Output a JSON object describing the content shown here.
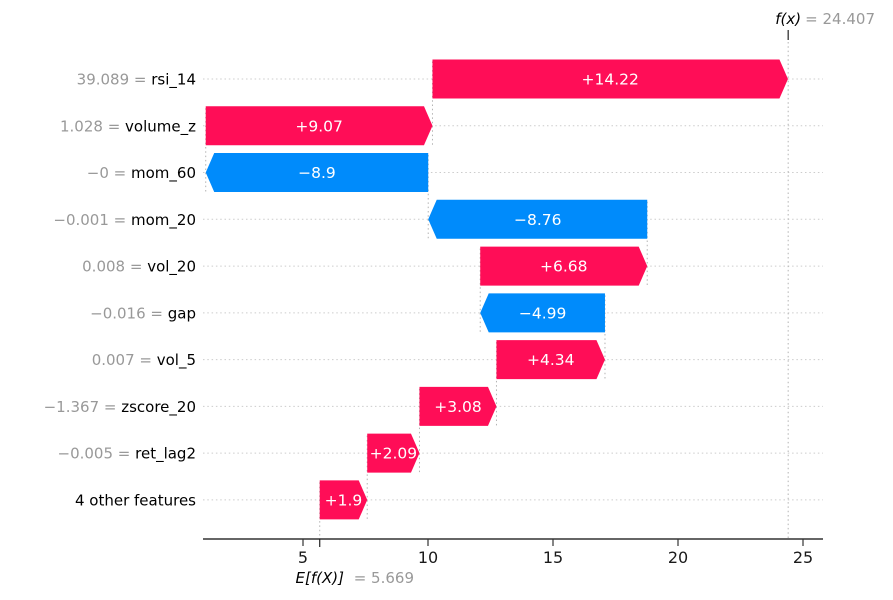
{
  "figure": {
    "background": "#ffffff"
  },
  "annotations": {
    "fx_math": "f(x)",
    "fx_rest": "= 24.407",
    "ef_math": "E[f(X)]",
    "ef_rest": "= 5.669"
  },
  "chart_data": {
    "type": "bar",
    "variant": "shap-waterfall",
    "title": "",
    "xlabel": "",
    "ylabel": "",
    "base_value": 5.669,
    "final_value": 24.407,
    "x_ticks": [
      5,
      10,
      15,
      20,
      25
    ],
    "x_domain": [
      1.0,
      25.8
    ],
    "grid": "dotted-horizontal-per-row",
    "legend": "none",
    "colors": {
      "positive": "#ff0d57",
      "negative": "#008bfb",
      "bar_label": "#ffffff",
      "gray_text": "#999999",
      "black_text": "#000000",
      "grid_line": "#cccccc",
      "connector_line": "#b3b3b3",
      "axis_line": "#333333",
      "tick_label": "#1a1a1a"
    },
    "rows": [
      {
        "feature": "rsi_14",
        "data_value": "39.089",
        "contribution": 14.22,
        "label": "+14.22"
      },
      {
        "feature": "volume_z",
        "data_value": "1.028",
        "contribution": 9.07,
        "label": "+9.07"
      },
      {
        "feature": "mom_60",
        "data_value": "−0",
        "contribution": -8.9,
        "label": "−8.9"
      },
      {
        "feature": "mom_20",
        "data_value": "−0.001",
        "contribution": -8.76,
        "label": "−8.76"
      },
      {
        "feature": "vol_20",
        "data_value": "0.008",
        "contribution": 6.68,
        "label": "+6.68"
      },
      {
        "feature": "gap",
        "data_value": "−0.016",
        "contribution": -4.99,
        "label": "−4.99"
      },
      {
        "feature": "vol_5",
        "data_value": "0.007",
        "contribution": 4.34,
        "label": "+4.34"
      },
      {
        "feature": "zscore_20",
        "data_value": "−1.367",
        "contribution": 3.08,
        "label": "+3.08"
      },
      {
        "feature": "ret_lag2",
        "data_value": "−0.005",
        "contribution": 2.09,
        "label": "+2.09"
      },
      {
        "feature": "4 other features",
        "data_value": null,
        "contribution": 1.9,
        "label": "+1.9"
      }
    ]
  }
}
